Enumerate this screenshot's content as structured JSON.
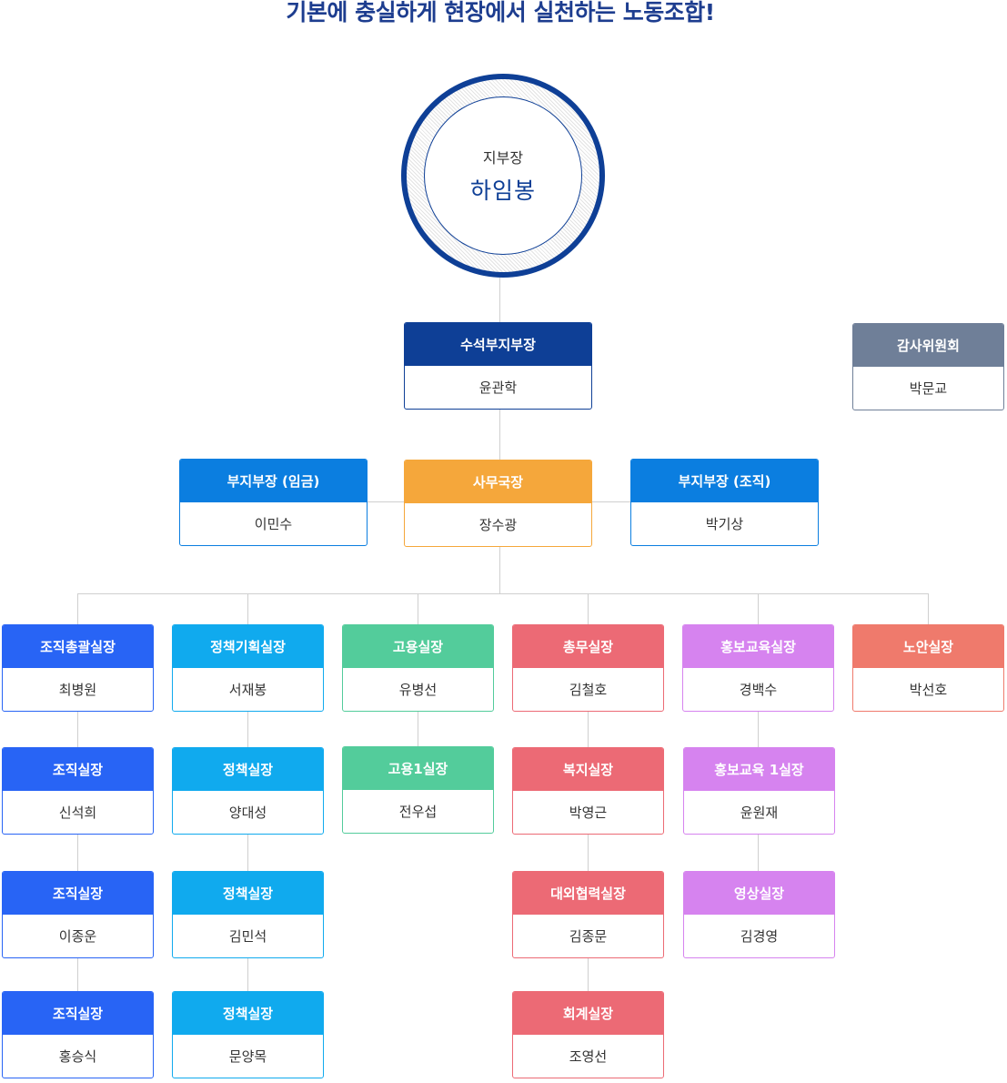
{
  "headline": "기본에 충실하게 현장에서 실천하는 노동조합!",
  "head": {
    "title": "지부장",
    "name": "하임봉"
  },
  "colors": {
    "navy": "#0e3f96",
    "blue": "#0b7ee0",
    "orange": "#f5a73b",
    "gray": "#6f7f98",
    "royal": "#2864f5",
    "sky": "#10aaee",
    "green": "#53cc9b",
    "rose": "#ec6a75",
    "violet": "#d683ef",
    "salmon": "#ef7a6c",
    "line": "#cfcfcf"
  },
  "senior_vp": {
    "title": "수석부지부장",
    "name": "윤관학"
  },
  "audit": {
    "title": "감사위원회",
    "name": "박문교"
  },
  "vp_wage": {
    "title": "부지부장 (임금)",
    "name": "이민수"
  },
  "secretary_general": {
    "title": "사무국장",
    "name": "장수광"
  },
  "vp_org": {
    "title": "부지부장 (조직)",
    "name": "박기상"
  },
  "departments": [
    {
      "title": "조직총괄실장",
      "name": "최병원",
      "subs": [
        {
          "title": "조직실장",
          "name": "신석희"
        },
        {
          "title": "조직실장",
          "name": "이종운"
        },
        {
          "title": "조직실장",
          "name": "홍승식"
        }
      ]
    },
    {
      "title": "정책기획실장",
      "name": "서재봉",
      "subs": [
        {
          "title": "정책실장",
          "name": "양대성"
        },
        {
          "title": "정책실장",
          "name": "김민석"
        },
        {
          "title": "정책실장",
          "name": "문양목"
        }
      ]
    },
    {
      "title": "고용실장",
      "name": "유병선",
      "subs": [
        {
          "title": "고용1실장",
          "name": "전우섭"
        }
      ]
    },
    {
      "title": "총무실장",
      "name": "김철호",
      "subs": [
        {
          "title": "복지실장",
          "name": "박영근"
        },
        {
          "title": "대외협력실장",
          "name": "김종문"
        },
        {
          "title": "회계실장",
          "name": "조영선"
        }
      ]
    },
    {
      "title": "홍보교육실장",
      "name": "경백수",
      "subs": [
        {
          "title": "홍보교육 1실장",
          "name": "윤원재"
        },
        {
          "title": "영상실장",
          "name": "김경영"
        }
      ]
    },
    {
      "title": "노안실장",
      "name": "박선호",
      "subs": []
    }
  ]
}
